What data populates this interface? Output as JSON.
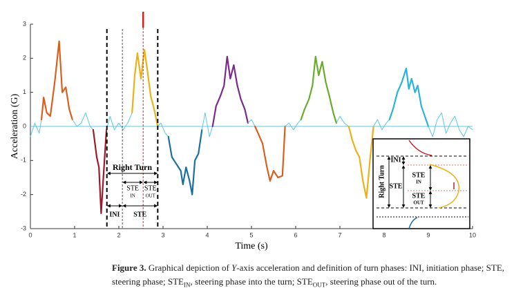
{
  "chart_data": {
    "type": "line",
    "xlabel": "Time (s)",
    "ylabel": "Acceleration (G)",
    "xlim": [
      0,
      10
    ],
    "ylim": [
      -3,
      3
    ],
    "xticks": [
      0,
      1,
      2,
      3,
      4,
      5,
      6,
      7,
      8,
      9,
      10
    ],
    "yticks": [
      -3,
      -2,
      -1,
      0,
      1,
      2,
      3
    ],
    "reference_line": 0,
    "reference_color": "#5bc8e0",
    "phase_lines": [
      1.73,
      2.08,
      2.88
    ],
    "peak_line": 2.55,
    "series": [
      {
        "color": "#5bc8e0",
        "x": [
          0,
          0.1,
          0.2,
          0.25
        ],
        "values": [
          -0.3,
          0.1,
          -0.2,
          0.2
        ]
      },
      {
        "color": "#d95f1e",
        "x": [
          0.25,
          0.3,
          0.37,
          0.45,
          0.55,
          0.65,
          0.72,
          0.8,
          0.88,
          0.95
        ],
        "values": [
          0.2,
          0.85,
          0.4,
          0.3,
          1.3,
          2.5,
          1.0,
          1.15,
          0.5,
          0.2
        ]
      },
      {
        "color": "#5bc8e0",
        "x": [
          0.95,
          1.05,
          1.15,
          1.25,
          1.35,
          1.42
        ],
        "values": [
          0.2,
          0.0,
          0.1,
          0.4,
          0.0,
          -0.1
        ]
      },
      {
        "color": "#a0182a",
        "x": [
          1.42,
          1.5,
          1.55,
          1.6,
          1.65,
          1.72
        ],
        "values": [
          -0.1,
          -0.9,
          -1.2,
          -2.55,
          -1.5,
          -0.1
        ]
      },
      {
        "color": "#5bc8e0",
        "x": [
          1.72,
          1.8,
          1.9,
          2.0,
          2.1,
          2.2,
          2.3
        ],
        "values": [
          -0.1,
          0.3,
          -0.1,
          0.1,
          -0.1,
          0.1,
          0.4
        ]
      },
      {
        "color": "#eab11b",
        "x": [
          2.3,
          2.36,
          2.42,
          2.5,
          2.58,
          2.65,
          2.72,
          2.8,
          2.88
        ],
        "values": [
          0.4,
          1.5,
          2.15,
          1.4,
          2.25,
          1.6,
          0.9,
          0.5,
          0.0
        ]
      },
      {
        "color": "#5bc8e0",
        "x": [
          2.88,
          2.95,
          3.05,
          3.12
        ],
        "values": [
          0,
          0.1,
          -0.2,
          -0.3
        ]
      },
      {
        "color": "#1a6fa0",
        "x": [
          3.12,
          3.2,
          3.3,
          3.4,
          3.45,
          3.52,
          3.6,
          3.66,
          3.72,
          3.8,
          3.88
        ],
        "values": [
          -0.3,
          -0.9,
          -1.1,
          -1.3,
          -1.7,
          -1.2,
          -1.6,
          -2.0,
          -1.0,
          -0.8,
          -0.1
        ]
      },
      {
        "color": "#5bc8e0",
        "x": [
          3.88,
          3.95,
          4.05,
          4.12
        ],
        "values": [
          -0.1,
          0.4,
          -0.3,
          0.0
        ]
      },
      {
        "color": "#7a2a8c",
        "x": [
          4.12,
          4.2,
          4.3,
          4.38,
          4.45,
          4.52,
          4.6,
          4.68,
          4.76,
          4.85,
          4.92
        ],
        "values": [
          0,
          0.6,
          0.9,
          1.2,
          2.05,
          1.4,
          1.8,
          1.2,
          0.8,
          0.5,
          0.1
        ]
      },
      {
        "color": "#5bc8e0",
        "x": [
          4.92,
          5.0,
          5.08
        ],
        "values": [
          0.1,
          0.2,
          0.0
        ]
      },
      {
        "color": "#d95f1e",
        "x": [
          5.08,
          5.15,
          5.25,
          5.35,
          5.42,
          5.5,
          5.6,
          5.7,
          5.76
        ],
        "values": [
          0,
          -0.2,
          -0.5,
          -1.2,
          -1.6,
          -1.3,
          -1.5,
          -1.45,
          0.0
        ]
      },
      {
        "color": "#5bc8e0",
        "x": [
          5.76,
          5.85,
          5.95,
          6.05,
          6.12
        ],
        "values": [
          0,
          0.1,
          -0.1,
          0.1,
          0.2
        ]
      },
      {
        "color": "#6aab2a",
        "x": [
          6.12,
          6.2,
          6.3,
          6.38,
          6.45,
          6.52,
          6.6,
          6.68,
          6.76,
          6.85,
          6.92
        ],
        "values": [
          0.2,
          0.5,
          0.8,
          1.2,
          2.05,
          1.5,
          1.9,
          1.3,
          0.9,
          0.4,
          0.1
        ]
      },
      {
        "color": "#5bc8e0",
        "x": [
          6.92,
          7.0,
          7.1,
          7.2
        ],
        "values": [
          0.1,
          0.3,
          0.1,
          0.0
        ]
      },
      {
        "color": "#eab11b",
        "x": [
          7.2,
          7.28,
          7.36,
          7.44,
          7.52,
          7.6,
          7.68,
          7.76
        ],
        "values": [
          0,
          -0.4,
          -0.7,
          -0.9,
          -1.6,
          -2.1,
          -1.0,
          0.0
        ]
      },
      {
        "color": "#5bc8e0",
        "x": [
          7.76,
          7.85,
          7.95,
          8.05,
          8.12
        ],
        "values": [
          0,
          0.2,
          -0.1,
          0.1,
          0.2
        ]
      },
      {
        "color": "#2ab4d8",
        "x": [
          8.12,
          8.2,
          8.3,
          8.4,
          8.5,
          8.56,
          8.62,
          8.7,
          8.76,
          8.84,
          8.92,
          9.0
        ],
        "values": [
          0.2,
          0.5,
          1.0,
          1.3,
          1.7,
          1.1,
          1.4,
          1.0,
          1.2,
          0.6,
          0.3,
          0.0
        ]
      },
      {
        "color": "#5bc8e0",
        "x": [
          9.0,
          9.1,
          9.2,
          9.3,
          9.4,
          9.5,
          9.6,
          9.7,
          9.8,
          9.9,
          10.0
        ],
        "values": [
          0,
          -0.3,
          0.2,
          0.4,
          -0.2,
          0.1,
          0.3,
          -0.1,
          -0.3,
          0.0,
          -0.1
        ]
      }
    ],
    "annotations": {
      "right_turn": "Right Turn",
      "ste_in": [
        "STE",
        "IN"
      ],
      "ste_out": [
        "STE",
        "OUT"
      ],
      "ini": "INI",
      "ste": "STE"
    },
    "inset": {
      "right_turn": "Right Turn",
      "ini": "INI",
      "ste": "STE",
      "ste_in": [
        "STE",
        "IN"
      ],
      "ste_out": [
        "STE",
        "OUT"
      ]
    }
  },
  "caption": {
    "label": "Figure 3.",
    "parts": [
      "Graphical depiction of ",
      "Y",
      "-axis acceleration and definition of turn phases: INI, initiation phase; STE, steering phase; STE",
      "IN",
      ", steering phase into the turn; STE",
      "OUT",
      ", steering phase out of the turn."
    ]
  }
}
